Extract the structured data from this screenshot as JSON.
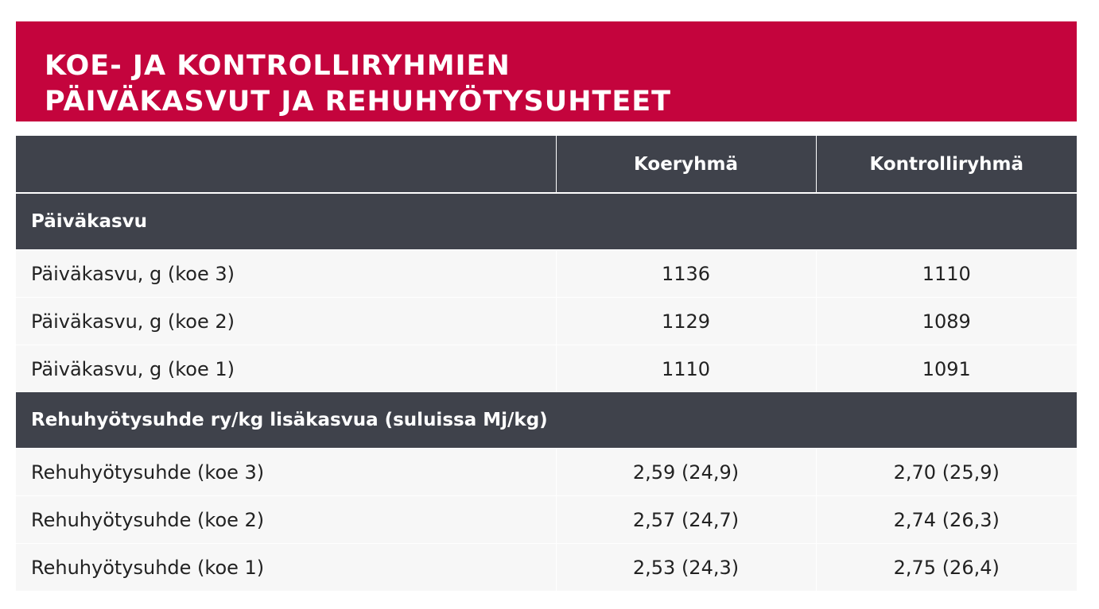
{
  "title": {
    "line1": "KOE- JA KONTROLLIRYHMIEN",
    "line2": "PÄIVÄKASVUT JA REHUHYÖTYSUHTEET"
  },
  "table": {
    "columns": [
      "",
      "Koeryhmä",
      "Kontrolliryhmä"
    ],
    "sections": [
      {
        "heading": "Päiväkasvu",
        "rows": [
          {
            "label": "Päiväkasvu, g (koe 3)",
            "koeryhma": "1136",
            "kontrolliryhma": "1110"
          },
          {
            "label": "Päiväkasvu, g (koe 2)",
            "koeryhma": "1129",
            "kontrolliryhma": "1089"
          },
          {
            "label": "Päiväkasvu, g (koe 1)",
            "koeryhma": "1110",
            "kontrolliryhma": "1091"
          }
        ]
      },
      {
        "heading": "Rehuhyötysuhde ry/kg lisäkasvua (suluissa Mj/kg)",
        "rows": [
          {
            "label": "Rehuhyötysuhde (koe 3)",
            "koeryhma": "2,59 (24,9)",
            "kontrolliryhma": "2,70 (25,9)"
          },
          {
            "label": "Rehuhyötysuhde (koe 2)",
            "koeryhma": "2,57 (24,7)",
            "kontrolliryhma": "2,74 (26,3)"
          },
          {
            "label": "Rehuhyötysuhde (koe 1)",
            "koeryhma": "2,53 (24,3)",
            "kontrolliryhma": "2,75 (26,4)"
          }
        ]
      }
    ]
  },
  "colors": {
    "banner": "#c4043d",
    "header": "#3f424b",
    "row": "#f7f7f7"
  }
}
